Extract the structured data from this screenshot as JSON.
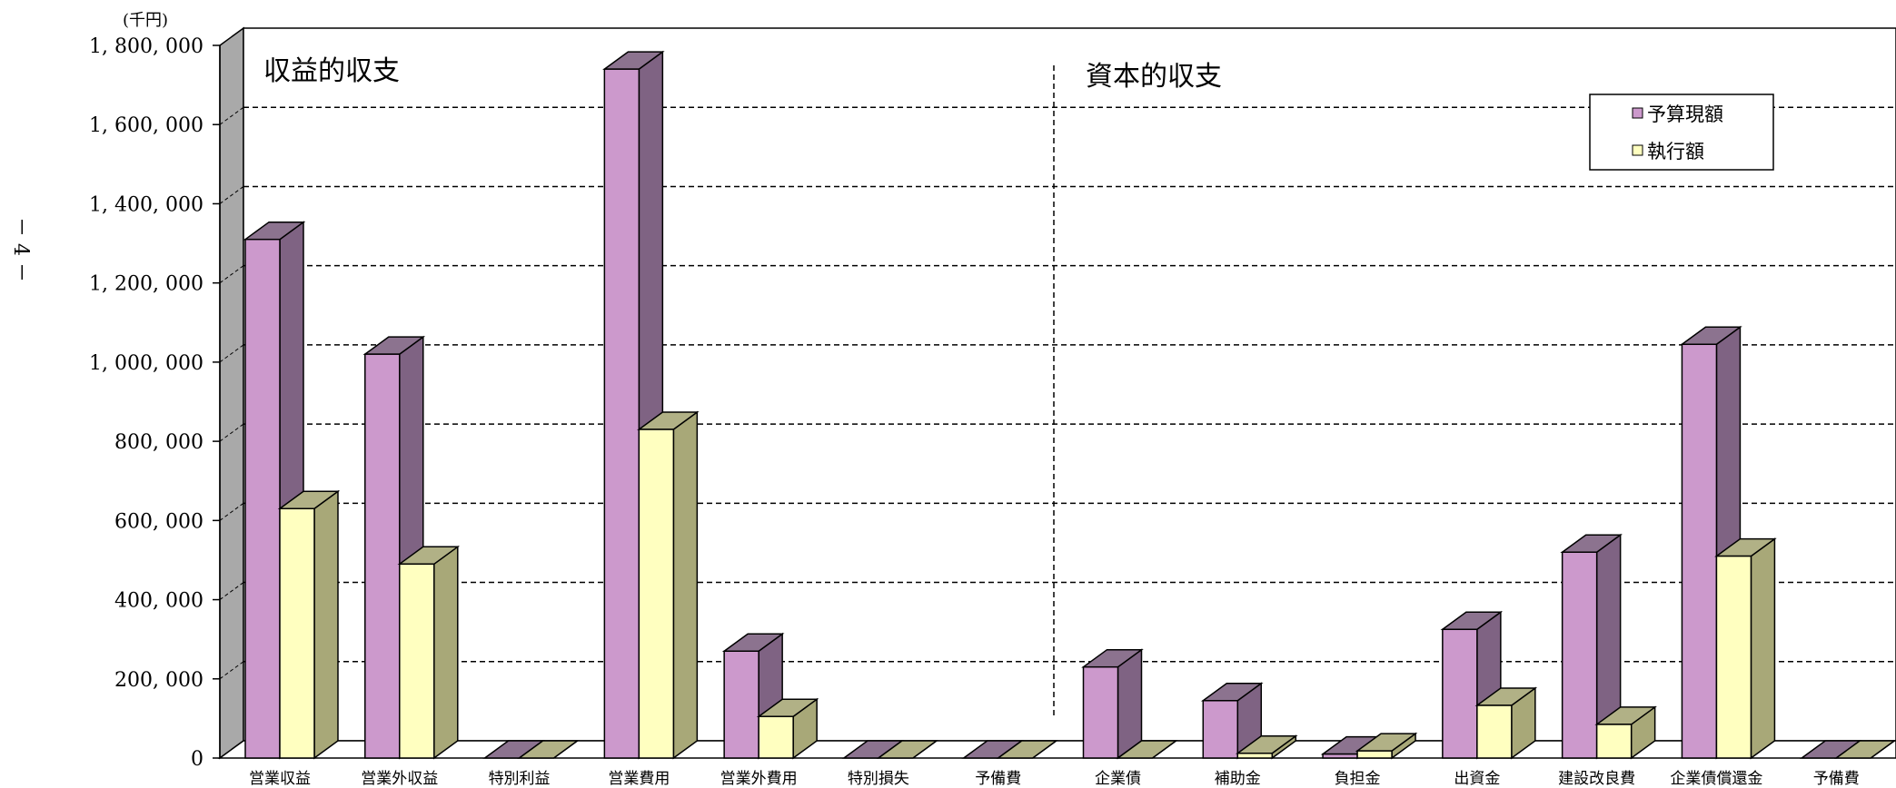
{
  "page_number": "－ 4 －",
  "chart_data": {
    "type": "bar",
    "unit_label": "(千円)",
    "ylim": [
      0,
      1800000
    ],
    "yticks": [
      0,
      200000,
      400000,
      600000,
      800000,
      1000000,
      1200000,
      1400000,
      1600000,
      1800000
    ],
    "ytick_labels": [
      "0",
      "200, 000",
      "400, 000",
      "600, 000",
      "800, 000",
      "1, 000, 000",
      "1, 200, 000",
      "1, 400, 000",
      "1, 600, 000",
      "1, 800, 000"
    ],
    "grid": "horizontal dashed",
    "section_labels": [
      "収益的収支",
      "資本的収支"
    ],
    "categories": [
      "営業収益",
      "営業外収益",
      "特別利益",
      "営業費用",
      "営業外費用",
      "特別損失",
      "予備費",
      "企業債",
      "補助金",
      "負担金",
      "出資金",
      "建設改良費",
      "企業債償還金",
      "予備費"
    ],
    "series": [
      {
        "name": "予算現額",
        "values": [
          1310000,
          1020000,
          0,
          1740000,
          270000,
          0,
          0,
          230000,
          145000,
          10000,
          325000,
          520000,
          1045000,
          0
        ]
      },
      {
        "name": "執行額",
        "values": [
          630000,
          490000,
          0,
          830000,
          105000,
          0,
          0,
          0,
          12000,
          18000,
          133000,
          85000,
          510000,
          0
        ]
      }
    ],
    "legend_position": "top-right",
    "colors": {
      "series1_front": "#cc99cc",
      "series1_side": "#7f6383",
      "series2_front": "#ffffc0",
      "series2_side": "#a8a878",
      "wall": "#ffffff",
      "left_wall": "#a9a9a9"
    }
  }
}
